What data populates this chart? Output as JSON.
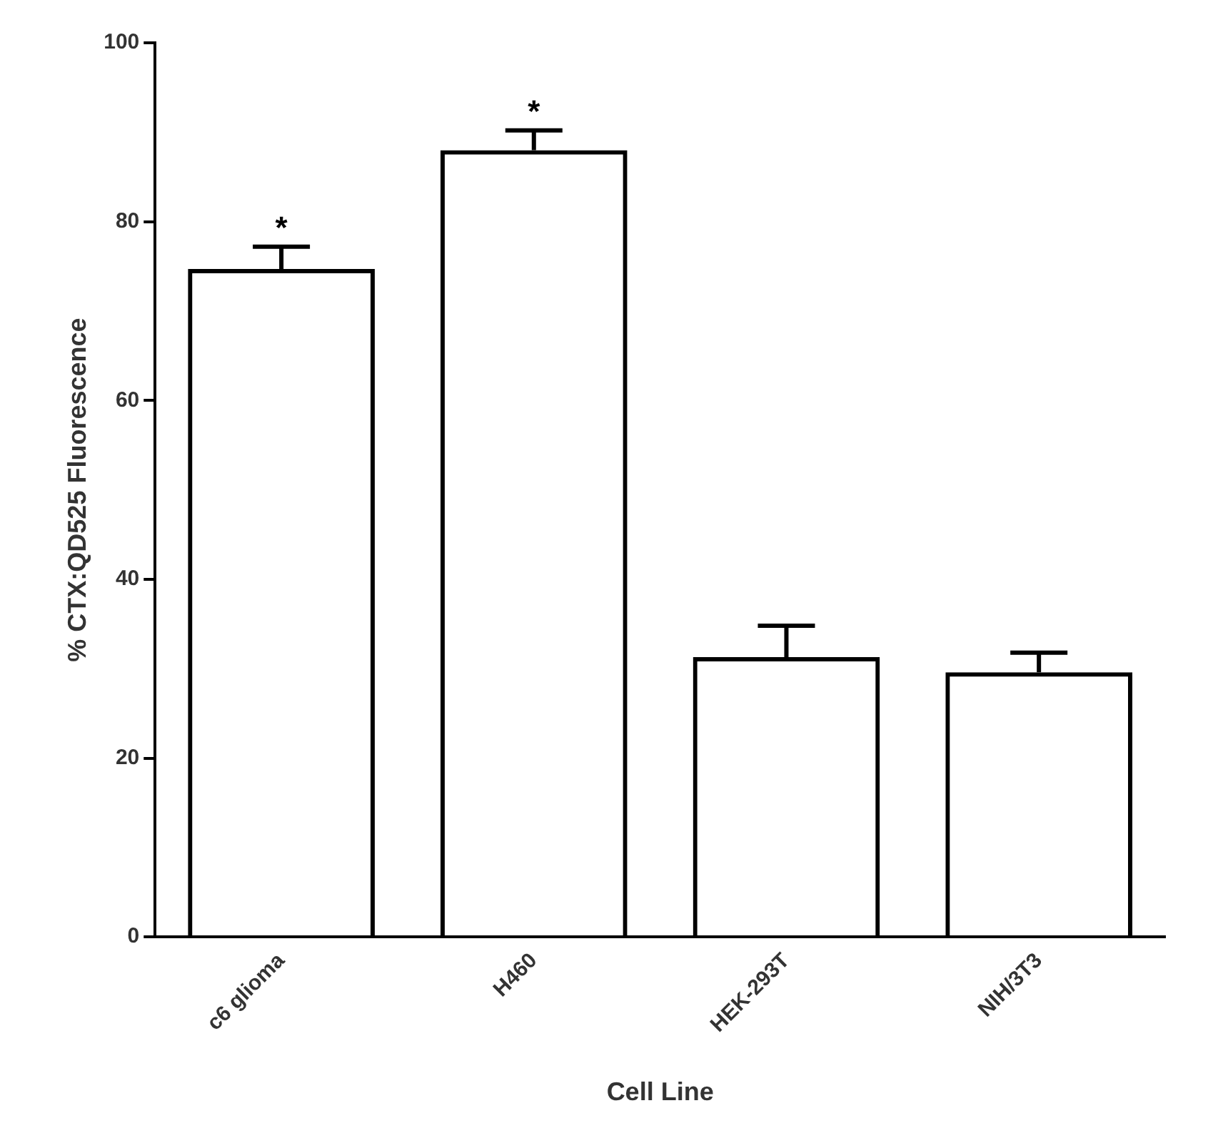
{
  "chart_data": {
    "type": "bar",
    "xlabel": "Cell Line",
    "ylabel": "% CTX:QD525 Fluorescence",
    "categories": [
      "c6 glioma",
      "H460",
      "HEK-293T",
      "NIH/3T3"
    ],
    "values": [
      74.7,
      88,
      31.3,
      29.6
    ],
    "errors": [
      2.5,
      2.2,
      3.5,
      2.2
    ],
    "color": "#000000",
    "ylim": [
      0,
      100
    ],
    "yticks": [
      0,
      20,
      40,
      60,
      80,
      100
    ],
    "grid": false,
    "legend": false,
    "annotations": [
      "*",
      "*"
    ]
  }
}
